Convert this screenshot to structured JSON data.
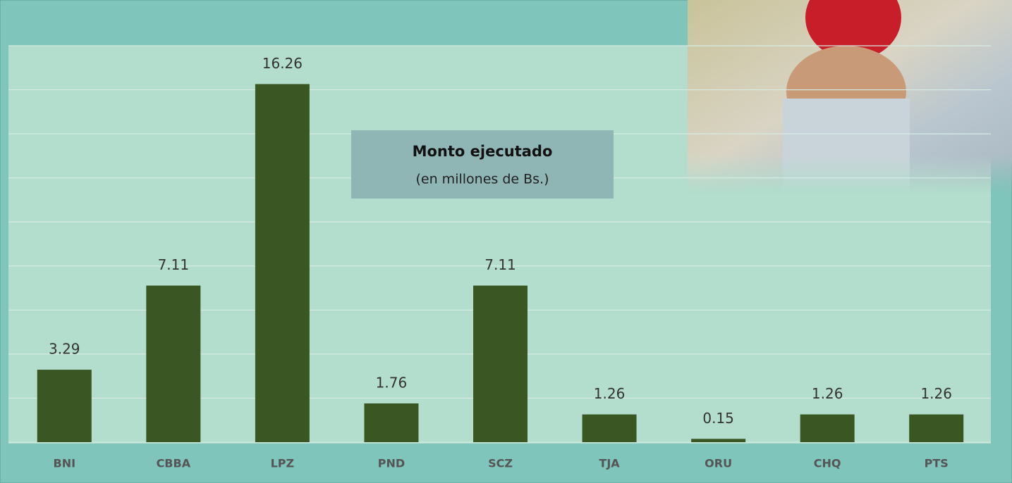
{
  "chart_data": {
    "type": "bar",
    "title": "Monto ejecutado",
    "subtitle": "(en millones de Bs.)",
    "categories": [
      "BNI",
      "CBBA",
      "LPZ",
      "PND",
      "SCZ",
      "TJA",
      "ORU",
      "CHQ",
      "PTS"
    ],
    "values": [
      3.29,
      7.11,
      16.26,
      1.76,
      7.11,
      1.26,
      0.15,
      1.26,
      1.26
    ],
    "color": "#3a5622",
    "ylim": [
      0,
      18
    ],
    "yticks": [
      0,
      2,
      4,
      6,
      8,
      10,
      12,
      14,
      16,
      18
    ],
    "grid": true
  }
}
